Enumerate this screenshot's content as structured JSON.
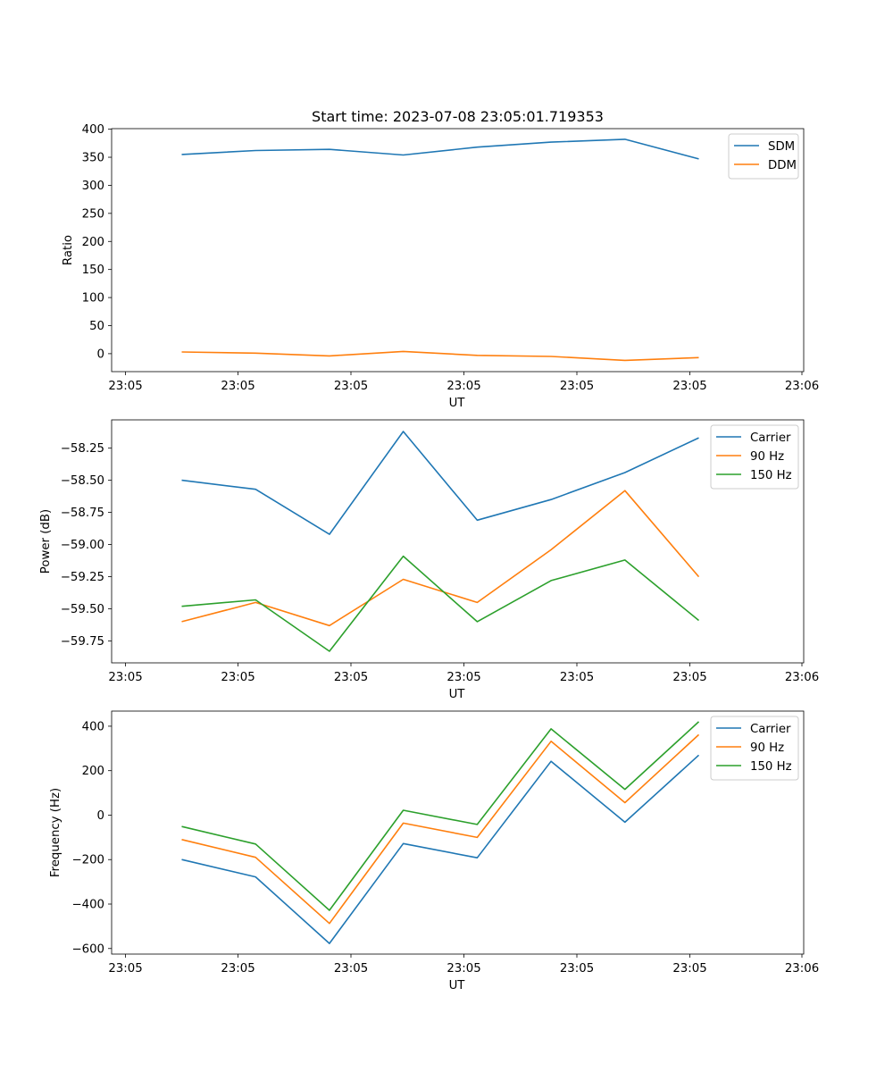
{
  "chart_data": [
    {
      "type": "line",
      "title": "Start time: 2023-07-08 23:05:01.719353",
      "xlabel": "UT",
      "ylabel": "Ratio",
      "x_tick_labels": [
        "23:05",
        "23:05",
        "23:05",
        "23:05",
        "23:05",
        "23:05",
        "23:05",
        "23:06"
      ],
      "y_ticks": [
        0,
        50,
        100,
        150,
        200,
        250,
        300,
        350,
        400
      ],
      "y_tick_labels": [
        "0",
        "50",
        "100",
        "150",
        "200",
        "250",
        "300",
        "350",
        "400"
      ],
      "xlim": [
        0,
        9
      ],
      "ylim": [
        -32,
        401
      ],
      "x": [
        1,
        2,
        3,
        4,
        5,
        6,
        7,
        8
      ],
      "series": [
        {
          "name": "SDM",
          "color": "#1f77b4",
          "values": [
            355,
            362,
            364,
            354,
            368,
            377,
            382,
            347
          ]
        },
        {
          "name": "DDM",
          "color": "#ff7f0e",
          "values": [
            3,
            1,
            -4,
            4,
            -3,
            -5,
            -12,
            -7
          ]
        }
      ],
      "legend": "top-right"
    },
    {
      "type": "line",
      "title": "",
      "xlabel": "UT",
      "ylabel": "Power (dB)",
      "x_tick_labels": [
        "23:05",
        "23:05",
        "23:05",
        "23:05",
        "23:05",
        "23:05",
        "23:05",
        "23:06"
      ],
      "y_ticks": [
        -59.75,
        -59.5,
        -59.25,
        -59.0,
        -58.75,
        -58.5,
        -58.25
      ],
      "y_tick_labels": [
        "−59.75",
        "−59.50",
        "−59.25",
        "−59.00",
        "−58.75",
        "−58.50",
        "−58.25"
      ],
      "xlim": [
        0,
        9
      ],
      "ylim": [
        -59.92,
        -58.03
      ],
      "x": [
        1,
        2,
        3,
        4,
        5,
        6,
        7,
        8
      ],
      "series": [
        {
          "name": "Carrier",
          "color": "#1f77b4",
          "values": [
            -58.5,
            -58.57,
            -58.92,
            -58.12,
            -58.81,
            -58.65,
            -58.44,
            -58.17
          ]
        },
        {
          "name": "90 Hz",
          "color": "#ff7f0e",
          "values": [
            -59.6,
            -59.45,
            -59.63,
            -59.27,
            -59.45,
            -59.04,
            -58.58,
            -59.25
          ]
        },
        {
          "name": "150 Hz",
          "color": "#2ca02c",
          "values": [
            -59.48,
            -59.43,
            -59.83,
            -59.09,
            -59.6,
            -59.28,
            -59.12,
            -59.59
          ]
        }
      ],
      "legend": "top-right"
    },
    {
      "type": "line",
      "title": "",
      "xlabel": "UT",
      "ylabel": "Frequency (Hz)",
      "x_tick_labels": [
        "23:05",
        "23:05",
        "23:05",
        "23:05",
        "23:05",
        "23:05",
        "23:05",
        "23:06"
      ],
      "y_ticks": [
        -600,
        -400,
        -200,
        0,
        200,
        400
      ],
      "y_tick_labels": [
        "−600",
        "−400",
        "−200",
        "0",
        "200",
        "400"
      ],
      "xlim": [
        0,
        9
      ],
      "ylim": [
        -625,
        468
      ],
      "x": [
        1,
        2,
        3,
        4,
        5,
        6,
        7,
        8
      ],
      "series": [
        {
          "name": "Carrier",
          "color": "#1f77b4",
          "values": [
            -200,
            -278,
            -577,
            -128,
            -192,
            242,
            -32,
            270
          ]
        },
        {
          "name": "90 Hz",
          "color": "#ff7f0e",
          "values": [
            -110,
            -190,
            -487,
            -36,
            -100,
            332,
            56,
            362
          ]
        },
        {
          "name": "150 Hz",
          "color": "#2ca02c",
          "values": [
            -51,
            -130,
            -428,
            22,
            -42,
            388,
            116,
            420
          ]
        }
      ],
      "legend": "top-right"
    }
  ]
}
